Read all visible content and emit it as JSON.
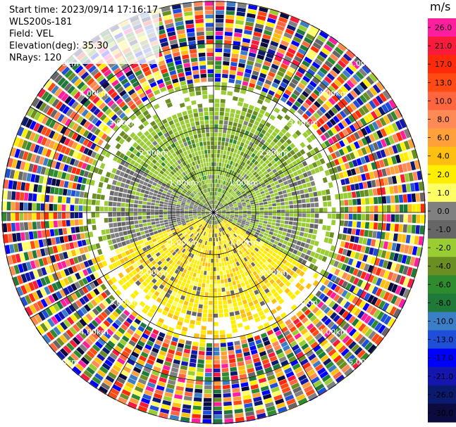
{
  "info": {
    "start_time": "Start time: 2023/09/14 17:16:17",
    "instrument": "WLS200s-181",
    "field": "Field: VEL",
    "elevation": "Elevation(deg): 35.30",
    "nrays": "NRays: 120"
  },
  "ring_labels": [
    "1.00km",
    "2.00km",
    "3.00km",
    "4.00km",
    "5.00km"
  ],
  "colorbar": {
    "unit": "m/s",
    "ticks": [
      "26.0",
      "21.0",
      "17.0",
      "13.0",
      "10.0",
      "8.0",
      "6.0",
      "4.0",
      "2.0",
      "1.0",
      "0.0",
      "-1.0",
      "-2.0",
      "-4.0",
      "-6.0",
      "-8.0",
      "-10.0",
      "-13.0",
      "-17.0",
      "-21.0",
      "-26.0",
      "-30.0"
    ],
    "colors": [
      "#ff1f9e",
      "#f91a3c",
      "#ff2a0a",
      "#ff4a14",
      "#ff6640",
      "#ff8a56",
      "#ffa03a",
      "#ffbf10",
      "#ffee00",
      "#ffff66",
      "#808080",
      "#666666",
      "#9acd32",
      "#6b8e23",
      "#2e8b2e",
      "#1f7a3a",
      "#3b7ec8",
      "#1f4fd8",
      "#0000ff",
      "#1515b0",
      "#0a1a6e",
      "#0b0b40"
    ]
  },
  "plot": {
    "range_km": 6.6,
    "n_rays": 120
  }
}
